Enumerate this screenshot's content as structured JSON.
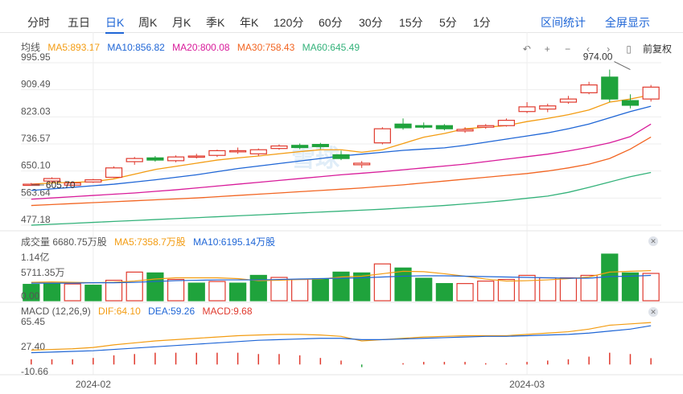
{
  "tabs": {
    "items": [
      "分时",
      "五日",
      "日K",
      "周K",
      "月K",
      "季K",
      "年K",
      "120分",
      "60分",
      "30分",
      "15分",
      "5分",
      "1分"
    ],
    "active": "日K",
    "right": [
      "区间统计",
      "全屏显示"
    ]
  },
  "legend": {
    "label": "均线",
    "ma5": "MA5:893.17",
    "ma10": "MA10:856.82",
    "ma20": "MA20:800.08",
    "ma30": "MA30:758.43",
    "ma60": "MA60:645.49",
    "adjust": "前复权"
  },
  "volume_legend": {
    "label": "成交量 6680.75万股",
    "ma5": "MA5:7358.7万股",
    "ma10": "MA10:6195.14万股"
  },
  "macd_legend": {
    "label": "MACD (12,26,9)",
    "dif": "DIF:64.10",
    "dea": "DEA:59.26",
    "macd": "MACD:9.68"
  },
  "watermark": "雪球",
  "colors": {
    "up": "#e03a2e",
    "down": "#1fa33c",
    "ma5": "#f39c12",
    "ma10": "#1f66d6",
    "ma20": "#d81b9a",
    "ma30": "#f26522",
    "ma60": "#33b27a",
    "accent": "#1f66d6"
  },
  "chart_data": [
    {
      "type": "candlestick",
      "y_ticks": [
        "995.95",
        "909.49",
        "823.03",
        "736.57",
        "650.10",
        "563.64",
        "477.18"
      ],
      "ylim": [
        477.18,
        995.95
      ],
      "x_ticks": [
        {
          "label": "2024-02",
          "index": 3
        },
        {
          "label": "2024-03",
          "index": 24
        }
      ],
      "annotations": [
        {
          "label": "974.00",
          "index": 29,
          "value": 974.0
        },
        {
          "label": "605.70",
          "index": 0,
          "value": 605.7
        }
      ],
      "candles": [
        {
          "o": 607,
          "h": 612,
          "l": 605.7,
          "c": 608
        },
        {
          "o": 618,
          "h": 630,
          "l": 610,
          "c": 626
        },
        {
          "o": 605,
          "h": 615,
          "l": 602,
          "c": 612
        },
        {
          "o": 615,
          "h": 625,
          "l": 612,
          "c": 622
        },
        {
          "o": 630,
          "h": 665,
          "l": 628,
          "c": 660
        },
        {
          "o": 680,
          "h": 695,
          "l": 670,
          "c": 690
        },
        {
          "o": 692,
          "h": 698,
          "l": 680,
          "c": 685
        },
        {
          "o": 683,
          "h": 700,
          "l": 678,
          "c": 695
        },
        {
          "o": 695,
          "h": 705,
          "l": 690,
          "c": 698
        },
        {
          "o": 700,
          "h": 718,
          "l": 695,
          "c": 715
        },
        {
          "o": 713,
          "h": 725,
          "l": 705,
          "c": 715
        },
        {
          "o": 705,
          "h": 722,
          "l": 698,
          "c": 718
        },
        {
          "o": 722,
          "h": 735,
          "l": 718,
          "c": 730
        },
        {
          "o": 732,
          "h": 738,
          "l": 720,
          "c": 725
        },
        {
          "o": 735,
          "h": 740,
          "l": 720,
          "c": 728
        },
        {
          "o": 702,
          "h": 715,
          "l": 685,
          "c": 690
        },
        {
          "o": 670,
          "h": 682,
          "l": 660,
          "c": 675
        },
        {
          "o": 740,
          "h": 790,
          "l": 735,
          "c": 785
        },
        {
          "o": 800,
          "h": 818,
          "l": 782,
          "c": 788
        },
        {
          "o": 795,
          "h": 805,
          "l": 785,
          "c": 790
        },
        {
          "o": 795,
          "h": 800,
          "l": 780,
          "c": 785
        },
        {
          "o": 778,
          "h": 790,
          "l": 772,
          "c": 783
        },
        {
          "o": 790,
          "h": 800,
          "l": 785,
          "c": 795
        },
        {
          "o": 795,
          "h": 818,
          "l": 792,
          "c": 812
        },
        {
          "o": 840,
          "h": 870,
          "l": 835,
          "c": 855
        },
        {
          "o": 848,
          "h": 865,
          "l": 838,
          "c": 858
        },
        {
          "o": 870,
          "h": 890,
          "l": 865,
          "c": 880
        },
        {
          "o": 900,
          "h": 935,
          "l": 895,
          "c": 925
        },
        {
          "o": 950,
          "h": 974,
          "l": 870,
          "c": 880
        },
        {
          "o": 875,
          "h": 895,
          "l": 850,
          "c": 860
        },
        {
          "o": 880,
          "h": 925,
          "l": 872,
          "c": 918
        }
      ],
      "ma_lines": [
        {
          "name": "MA5",
          "color_key": "ma5",
          "values": [
            608,
            612,
            614,
            616,
            625,
            640,
            655,
            665,
            675,
            685,
            692,
            698,
            705,
            712,
            718,
            718,
            710,
            718,
            738,
            758,
            770,
            785,
            790,
            795,
            808,
            818,
            830,
            845,
            870,
            880,
            893.17
          ]
        },
        {
          "name": "MA10",
          "color_key": "ma10",
          "values": [
            588,
            593,
            598,
            603,
            608,
            615,
            622,
            630,
            638,
            648,
            658,
            666,
            674,
            682,
            690,
            698,
            704,
            710,
            716,
            720,
            724,
            732,
            742,
            752,
            762,
            772,
            785,
            800,
            820,
            840,
            856.82
          ]
        },
        {
          "name": "MA20",
          "color_key": "ma20",
          "values": [
            560,
            564,
            568,
            572,
            576,
            580,
            585,
            590,
            596,
            602,
            608,
            614,
            620,
            626,
            632,
            638,
            643,
            648,
            654,
            660,
            666,
            672,
            680,
            688,
            696,
            704,
            714,
            726,
            740,
            760,
            800.08
          ]
        },
        {
          "name": "MA30",
          "color_key": "ma30",
          "values": [
            540,
            543,
            546,
            549,
            552,
            555,
            558,
            561,
            564,
            568,
            572,
            576,
            580,
            584,
            588,
            592,
            596,
            601,
            606,
            612,
            618,
            624,
            630,
            636,
            642,
            650,
            660,
            672,
            690,
            720,
            758.43
          ]
        },
        {
          "name": "MA60",
          "color_key": "ma60",
          "values": [
            477,
            480,
            483,
            486,
            489,
            492,
            495,
            498,
            501,
            504,
            507,
            510,
            513,
            516,
            519,
            522,
            525,
            528,
            532,
            536,
            540,
            545,
            550,
            556,
            563,
            570,
            582,
            598,
            615,
            632,
            645.49
          ]
        }
      ]
    },
    {
      "type": "bar",
      "title": "成交量",
      "y_ticks": [
        "1.14亿",
        "5711.35万",
        "0.00"
      ],
      "ylim": [
        0,
        114000000
      ],
      "values": [
        40000000,
        42000000,
        41000000,
        38000000,
        50000000,
        70000000,
        68000000,
        52000000,
        43000000,
        47000000,
        43000000,
        62000000,
        57000000,
        52000000,
        54000000,
        70000000,
        68000000,
        90000000,
        80000000,
        55000000,
        42000000,
        42000000,
        48000000,
        52000000,
        62000000,
        56000000,
        56000000,
        62000000,
        114000000,
        68000000,
        66807500
      ],
      "up": [
        false,
        false,
        true,
        false,
        true,
        true,
        false,
        true,
        false,
        true,
        false,
        false,
        true,
        true,
        false,
        false,
        false,
        true,
        false,
        false,
        false,
        true,
        true,
        true,
        true,
        true,
        true,
        true,
        false,
        false,
        true
      ],
      "ma_lines": [
        {
          "name": "MA5",
          "color_key": "ma5",
          "values": [
            45000000,
            46000000,
            45000000,
            44000000,
            45000000,
            48000000,
            53000000,
            56000000,
            56000000,
            56000000,
            54000000,
            49000000,
            50000000,
            52000000,
            53000000,
            58000000,
            60000000,
            66000000,
            72000000,
            71000000,
            66000000,
            60000000,
            53000000,
            48000000,
            49000000,
            51000000,
            54000000,
            58000000,
            70000000,
            72000000,
            73587000
          ]
        },
        {
          "name": "MA10",
          "color_key": "ma10",
          "values": [
            43000000,
            43000000,
            43000000,
            44000000,
            44000000,
            45000000,
            47000000,
            49000000,
            50000000,
            51000000,
            51000000,
            51000000,
            52000000,
            53000000,
            54000000,
            55000000,
            56000000,
            58000000,
            60000000,
            61000000,
            61000000,
            60000000,
            59000000,
            58000000,
            57000000,
            56000000,
            55000000,
            55000000,
            59000000,
            60000000,
            61951400
          ]
        }
      ]
    },
    {
      "type": "macd",
      "y_ticks": [
        "65.45",
        "27.40",
        "-10.66"
      ],
      "ylim": [
        -10.66,
        65.45
      ],
      "dif": [
        22,
        23,
        24,
        26,
        30,
        33,
        36,
        38,
        40,
        42,
        44,
        45,
        46,
        46,
        45,
        43,
        36,
        38,
        40,
        42,
        43,
        44,
        44,
        44,
        46,
        48,
        50,
        54,
        60,
        62,
        64.1
      ],
      "dea": [
        18,
        19,
        20,
        21,
        23,
        25,
        27,
        29,
        31,
        33,
        35,
        37,
        38,
        39,
        40,
        40,
        38,
        38,
        39,
        40,
        41,
        42,
        43,
        43,
        44,
        45,
        46,
        48,
        51,
        54,
        59.26
      ],
      "macd": [
        8,
        8,
        8,
        10,
        14,
        16,
        18,
        18,
        18,
        18,
        18,
        16,
        16,
        14,
        10,
        6,
        -4,
        0,
        2,
        4,
        4,
        4,
        2,
        2,
        4,
        6,
        8,
        12,
        18,
        16,
        9.68
      ]
    }
  ]
}
